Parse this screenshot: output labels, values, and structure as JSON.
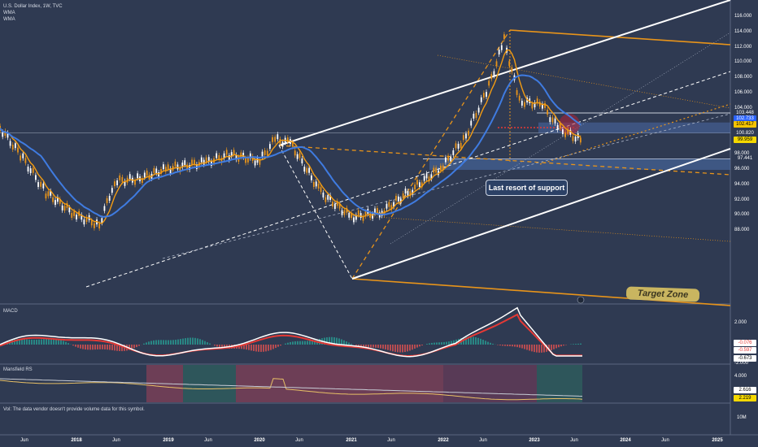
{
  "header": {
    "symbol": "U.S. Dollar Index, 1W, TVC",
    "indicator1": "WMA",
    "indicator2": "WMA"
  },
  "annotations": {
    "support_label": "Last resort of support",
    "target_label": "Target Zone"
  },
  "panes": {
    "macd_title": "MACD",
    "mrs_title": "Mansfield RS",
    "volume_note": "Vol: The data vendor doesn't provide volume data for this symbol."
  },
  "price_axis": {
    "ticks": [
      "116.000",
      "114.000",
      "112.000",
      "110.000",
      "108.000",
      "106.000",
      "104.000",
      "102.000",
      "100.000",
      "98.000",
      "96.000",
      "94.000",
      "92.000",
      "90.000",
      "88.000"
    ]
  },
  "price_tags": [
    {
      "label": "103.448",
      "bg": "#2f3a52",
      "fg": "#ffffff"
    },
    {
      "label": "102.733",
      "bg": "#2962ff",
      "fg": "#ffffff"
    },
    {
      "label": "102.417",
      "bg": "#f5c400",
      "fg": "#000000"
    },
    {
      "label": "100.820",
      "bg": "#2f3a52",
      "fg": "#ffffff"
    },
    {
      "label": "99.959",
      "bg": "#f5d800",
      "fg": "#000000"
    },
    {
      "label": "97.441",
      "bg": "#2f3a52",
      "fg": "#ffffff"
    }
  ],
  "macd_axis": {
    "ticks": [
      "2.000",
      "-2.000"
    ],
    "tags": [
      {
        "label": "-0.076",
        "bg": "#ffffff",
        "fg": "#e53935"
      },
      {
        "label": "-0.597",
        "bg": "#ffffff",
        "fg": "#e53935"
      },
      {
        "label": "-0.673",
        "bg": "#ffffff",
        "fg": "#000000"
      }
    ]
  },
  "mrs_axis": {
    "ticks": [
      "4.000"
    ],
    "tags": [
      {
        "label": "2.616",
        "bg": "#ffffff",
        "fg": "#000000"
      },
      {
        "label": "2.219",
        "bg": "#f5d800",
        "fg": "#000000"
      }
    ]
  },
  "volume_axis": {
    "tick": "10M"
  },
  "x_axis": {
    "labels": [
      {
        "label": "Jun",
        "year": false
      },
      {
        "label": "2018",
        "year": true
      },
      {
        "label": "Jun",
        "year": false
      },
      {
        "label": "2019",
        "year": true
      },
      {
        "label": "Jun",
        "year": false
      },
      {
        "label": "2020",
        "year": true
      },
      {
        "label": "Jun",
        "year": false
      },
      {
        "label": "2021",
        "year": true
      },
      {
        "label": "Jun",
        "year": false
      },
      {
        "label": "2022",
        "year": true
      },
      {
        "label": "Jun",
        "year": false
      },
      {
        "label": "2023",
        "year": true
      },
      {
        "label": "Jun",
        "year": false
      },
      {
        "label": "2024",
        "year": true
      },
      {
        "label": "Jun",
        "year": false
      },
      {
        "label": "2025",
        "year": true
      }
    ]
  },
  "chart_data": {
    "type": "line",
    "title": "U.S. Dollar Index, 1W, TVC",
    "x": [
      "2017-03",
      "2017-06",
      "2017-09",
      "2018-01",
      "2018-04",
      "2018-06",
      "2018-09",
      "2019-01",
      "2019-06",
      "2019-09",
      "2020-01",
      "2020-03",
      "2020-05",
      "2020-09",
      "2021-01",
      "2021-05",
      "2021-09",
      "2022-01",
      "2022-04",
      "2022-07",
      "2022-09",
      "2022-11",
      "2023-02",
      "2023-04",
      "2023-07"
    ],
    "series": [
      {
        "name": "U.S. Dollar Index",
        "values": [
          101.5,
          97.5,
          93.0,
          90.0,
          88.8,
          94.5,
          94.8,
          96.2,
          97.0,
          98.0,
          97.2,
          100.0,
          99.5,
          93.0,
          89.8,
          90.5,
          93.5,
          96.5,
          100.5,
          107.0,
          113.0,
          105.0,
          104.5,
          101.5,
          99.9
        ]
      }
    ],
    "colors": {
      "background": "#2f3a52",
      "wma_fast": "#f39c12",
      "wma_slow": "#3f7be0",
      "channel": "#ffffff",
      "fib_fan": "#e8941a",
      "support_zone": "#4a6aa5",
      "macd_line": "#ffffff",
      "signal_line": "#e53935"
    },
    "ylim": [
      87,
      117
    ],
    "y_scale": "linear",
    "grid": false,
    "legend": "none"
  }
}
